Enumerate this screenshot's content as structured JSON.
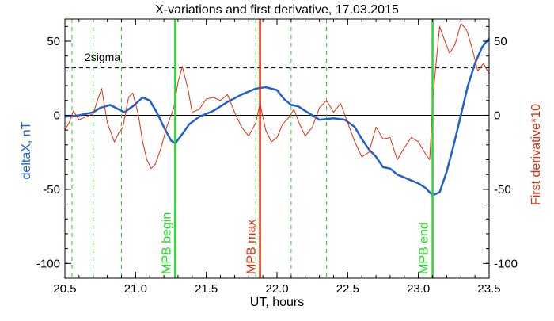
{
  "chart_data": {
    "type": "line",
    "title": "X-variations and first derivative, 17.03.2015",
    "xlabel": "UT, hours",
    "ylabel_left": "deltaX, nT",
    "ylabel_right": "First derivative*10",
    "xlim": [
      20.5,
      23.5
    ],
    "ylim": [
      -110,
      65
    ],
    "x_ticks": [
      20.5,
      21.0,
      21.5,
      22.0,
      22.5,
      23.0,
      23.5
    ],
    "x_tick_labels": [
      "20.5",
      "21.0",
      "21.5",
      "22.0",
      "22.5",
      "23.0",
      "23.5"
    ],
    "y_ticks": [
      50,
      0,
      -50,
      -100
    ],
    "y_tick_labels": [
      "50",
      "0",
      "-50",
      "-100"
    ],
    "grid": false,
    "colors": {
      "deltaX": "#1f5fd6",
      "derivative": "#e03010",
      "mpb_boundary": "#22dd22",
      "mpb_max": "#e03010",
      "dashed_green": "#22cc22",
      "sigma_line": "#000000"
    },
    "sigma_level": 32,
    "sigma_label": "2sigma",
    "dashed_green_x": [
      20.55,
      20.7,
      20.9,
      21.85,
      22.1,
      22.35
    ],
    "vertical_markers": [
      {
        "x": 21.28,
        "label": "MPB begin",
        "color": "#22dd22"
      },
      {
        "x": 21.88,
        "label": "MPB max",
        "color": "#e03010"
      },
      {
        "x": 23.1,
        "label": "MPB end",
        "color": "#22dd22"
      }
    ],
    "series": [
      {
        "key": "deltaX",
        "color": "#1f5fd6",
        "x": [
          20.5,
          20.6,
          20.7,
          20.75,
          20.82,
          20.88,
          20.92,
          20.98,
          21.05,
          21.1,
          21.15,
          21.2,
          21.25,
          21.28,
          21.32,
          21.38,
          21.45,
          21.55,
          21.65,
          21.75,
          21.85,
          21.92,
          22.0,
          22.05,
          22.1,
          22.15,
          22.2,
          22.3,
          22.4,
          22.48,
          22.55,
          22.6,
          22.65,
          22.7,
          22.75,
          22.8,
          22.85,
          22.9,
          22.95,
          23.0,
          23.05,
          23.1,
          23.15,
          23.2,
          23.25,
          23.3,
          23.35,
          23.4,
          23.45,
          23.5
        ],
        "y": [
          -1,
          0,
          2,
          5,
          7,
          4,
          2,
          6,
          12,
          10,
          2,
          -8,
          -17,
          -19,
          -14,
          -6,
          -1,
          3,
          9,
          14,
          18,
          19,
          17,
          11,
          7,
          6,
          3,
          -3,
          -2,
          -3,
          -8,
          -16,
          -23,
          -28,
          -35,
          -36,
          -40,
          -42,
          -44,
          -46,
          -49,
          -54,
          -52,
          -38,
          -20,
          0,
          20,
          35,
          46,
          52
        ]
      },
      {
        "key": "derivative",
        "color": "#e03010",
        "x": [
          20.5,
          20.53,
          20.56,
          20.6,
          20.65,
          20.7,
          20.73,
          20.76,
          20.8,
          20.85,
          20.88,
          20.91,
          20.95,
          20.98,
          21.02,
          21.05,
          21.08,
          21.11,
          21.14,
          21.18,
          21.22,
          21.27,
          21.3,
          21.33,
          21.37,
          21.4,
          21.45,
          21.5,
          21.55,
          21.6,
          21.65,
          21.7,
          21.75,
          21.8,
          21.85,
          21.88,
          21.92,
          21.96,
          22.0,
          22.04,
          22.08,
          22.12,
          22.16,
          22.2,
          22.25,
          22.3,
          22.35,
          22.4,
          22.45,
          22.5,
          22.55,
          22.6,
          22.65,
          22.7,
          22.75,
          22.8,
          22.85,
          22.9,
          22.95,
          23.0,
          23.05,
          23.08,
          23.1,
          23.12,
          23.15,
          23.18,
          23.22,
          23.26,
          23.3,
          23.34,
          23.38,
          23.42,
          23.46,
          23.5
        ],
        "y": [
          -10,
          -5,
          3,
          -3,
          -1,
          1,
          10,
          18,
          -5,
          -18,
          -12,
          -8,
          12,
          15,
          0,
          -18,
          -30,
          -36,
          -33,
          -22,
          -8,
          5,
          22,
          33,
          18,
          2,
          4,
          11,
          12,
          10,
          14,
          2,
          -8,
          -14,
          -5,
          8,
          -10,
          -18,
          -15,
          -6,
          -2,
          4,
          -6,
          -14,
          -8,
          5,
          10,
          2,
          8,
          -5,
          -18,
          -28,
          -25,
          -8,
          -16,
          -15,
          -30,
          -22,
          -15,
          -18,
          -26,
          -30,
          8,
          30,
          60,
          52,
          42,
          48,
          62,
          58,
          45,
          30,
          35,
          28
        ]
      }
    ]
  }
}
